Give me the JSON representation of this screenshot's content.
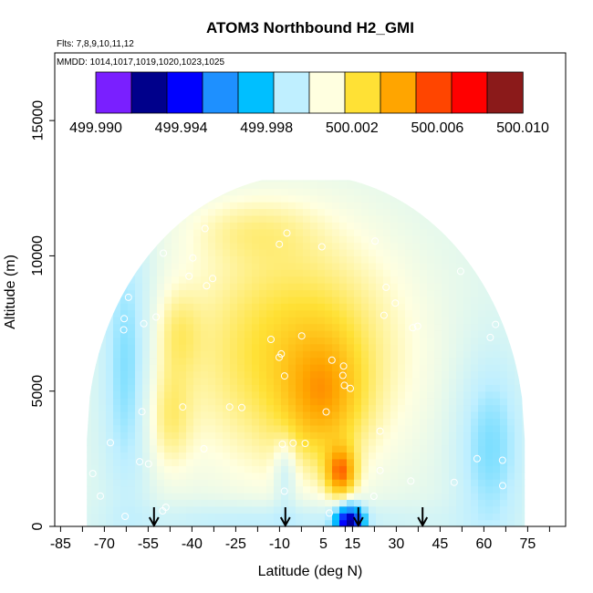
{
  "chart_data": {
    "type": "heatmap",
    "title": "ATOM3 Northbound H2_GMI",
    "flights_note": "Flts: 7,8,9,10,11,12",
    "mmdd_note": "MMDD: 1014,1017,1019,1020,1023,1025",
    "xlabel": "Latitude (deg N)",
    "ylabel": "Altitude (m)",
    "xlim": [
      -87,
      88
    ],
    "ylim": [
      0,
      17500
    ],
    "xticks": [
      -85,
      -70,
      -55,
      -40,
      -25,
      -10,
      5,
      15,
      30,
      45,
      60,
      75
    ],
    "xtick_labels": [
      "-85",
      "-70",
      "-55",
      "-40",
      "-25",
      "-10",
      "5",
      "15",
      "30",
      "45",
      "60",
      "75"
    ],
    "yticks": [
      0,
      5000,
      10000,
      15000
    ],
    "ytick_labels": [
      "0",
      "5000",
      "10000",
      "15000"
    ],
    "colorbar": {
      "min": 499.99,
      "max": 500.01,
      "ticks": [
        499.99,
        499.994,
        499.998,
        500.002,
        500.006,
        500.01
      ],
      "tick_labels": [
        "499.990",
        "499.994",
        "499.998",
        "500.002",
        "500.006",
        "500.010"
      ],
      "colors": [
        "#7a1fff",
        "#00008b",
        "#0000ff",
        "#1e90ff",
        "#00bfff",
        "#bfefff",
        "#ffffe0",
        "#ffe135",
        "#ffa500",
        "#ff4500",
        "#ff0000",
        "#8b1a1a"
      ]
    },
    "profile_arrows_lat": [
      -53,
      -8,
      17,
      39
    ],
    "features": [
      {
        "lat": -48,
        "alt": 4000,
        "value": 500.0045
      },
      {
        "lat": -45,
        "alt": 7200,
        "value": 500.0045
      },
      {
        "lat": 5,
        "alt": 4800,
        "value": 500.006
      },
      {
        "lat": 11,
        "alt": 2000,
        "value": 500.009
      },
      {
        "lat": 14,
        "alt": 250,
        "value": 499.991
      },
      {
        "lat": -20,
        "alt": 11000,
        "value": 500.004
      }
    ]
  }
}
